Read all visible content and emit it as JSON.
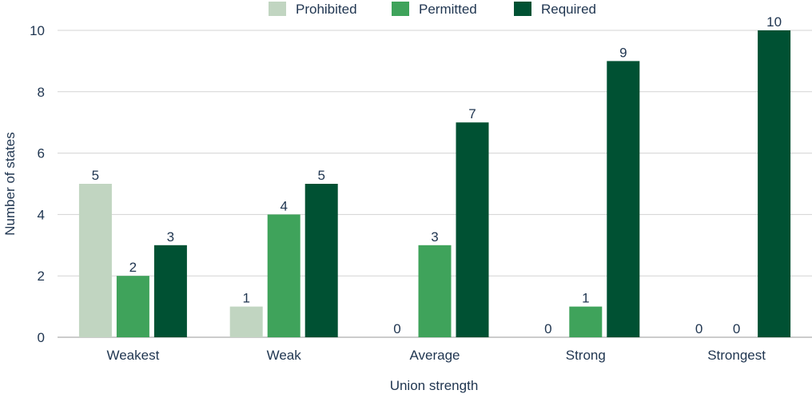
{
  "chart_data": {
    "type": "bar",
    "categories": [
      "Weakest",
      "Weak",
      "Average",
      "Strong",
      "Strongest"
    ],
    "series": [
      {
        "name": "Prohibited",
        "color": "#c1d5c1",
        "values": [
          5,
          1,
          0,
          0,
          0
        ]
      },
      {
        "name": "Permitted",
        "color": "#3fa35b",
        "values": [
          2,
          4,
          3,
          1,
          0
        ]
      },
      {
        "name": "Required",
        "color": "#005133",
        "values": [
          3,
          5,
          7,
          9,
          10
        ]
      }
    ],
    "xlabel": "Union strength",
    "ylabel": "Number of states",
    "ylim": [
      0,
      10
    ],
    "yticks": [
      0,
      2,
      4,
      6,
      8,
      10
    ],
    "grid": true,
    "legend": "top-center"
  }
}
